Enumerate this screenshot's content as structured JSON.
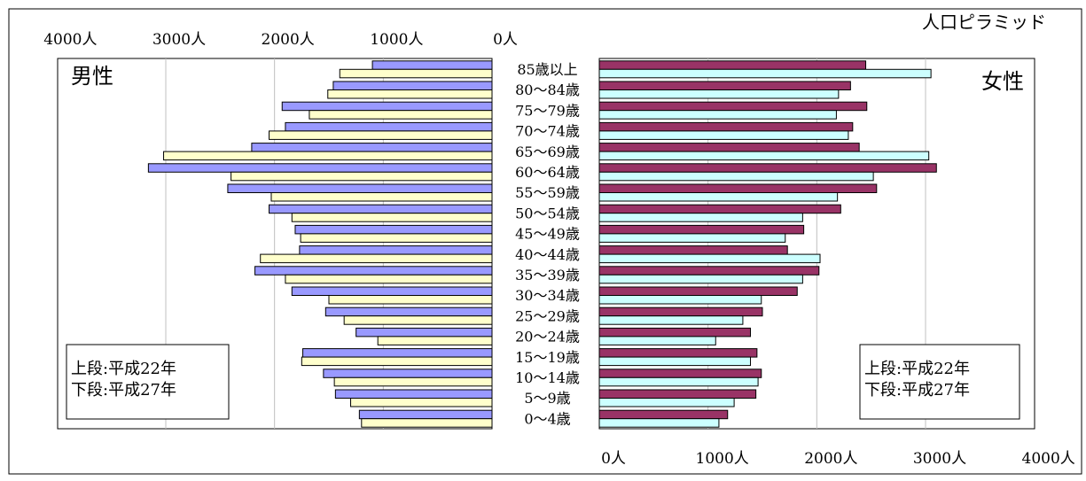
{
  "chart_data": {
    "type": "bar",
    "title": "人口ピラミッド",
    "left_label": "男性",
    "right_label": "女性",
    "legend_lines": [
      "上段:平成22年",
      "下段:平成27年"
    ],
    "xlim": [
      0,
      4000
    ],
    "x_ticks": [
      {
        "value": 4000,
        "label": "4000人"
      },
      {
        "value": 3000,
        "label": "3000人"
      },
      {
        "value": 2000,
        "label": "2000人"
      },
      {
        "value": 1000,
        "label": "1000人"
      },
      {
        "value": 0,
        "label": "0人"
      }
    ],
    "categories": [
      "85歳以上",
      "80～84歳",
      "75～79歳",
      "70～74歳",
      "65～69歳",
      "60～64歳",
      "55～59歳",
      "50～54歳",
      "45～49歳",
      "40～44歳",
      "35～39歳",
      "30～34歳",
      "25～29歳",
      "20～24歳",
      "15～19歳",
      "10～14歳",
      "5～9歳",
      "0～4歳"
    ],
    "series": [
      {
        "name": "男性 平成22年",
        "side": "left",
        "color": "#9999FF",
        "values": [
          1100,
          1460,
          1930,
          1900,
          2210,
          3160,
          2430,
          2050,
          1810,
          1770,
          2180,
          1840,
          1530,
          1250,
          1740,
          1550,
          1440,
          1220
        ]
      },
      {
        "name": "男性 平成27年",
        "side": "left",
        "color": "#FFFFCC",
        "values": [
          1400,
          1510,
          1680,
          2050,
          3020,
          2400,
          2030,
          1840,
          1760,
          2130,
          1900,
          1500,
          1360,
          1050,
          1750,
          1450,
          1300,
          1200
        ]
      },
      {
        "name": "女性 平成22年",
        "side": "right",
        "color": "#993366",
        "values": [
          2450,
          2310,
          2460,
          2330,
          2390,
          3100,
          2550,
          2220,
          1880,
          1730,
          2020,
          1820,
          1500,
          1390,
          1450,
          1490,
          1440,
          1180
        ]
      },
      {
        "name": "女性 平成27年",
        "side": "right",
        "color": "#CCFFFF",
        "values": [
          3050,
          2200,
          2180,
          2290,
          3030,
          2520,
          2190,
          1870,
          1710,
          2030,
          1870,
          1490,
          1320,
          1070,
          1390,
          1460,
          1240,
          1100
        ]
      }
    ]
  }
}
